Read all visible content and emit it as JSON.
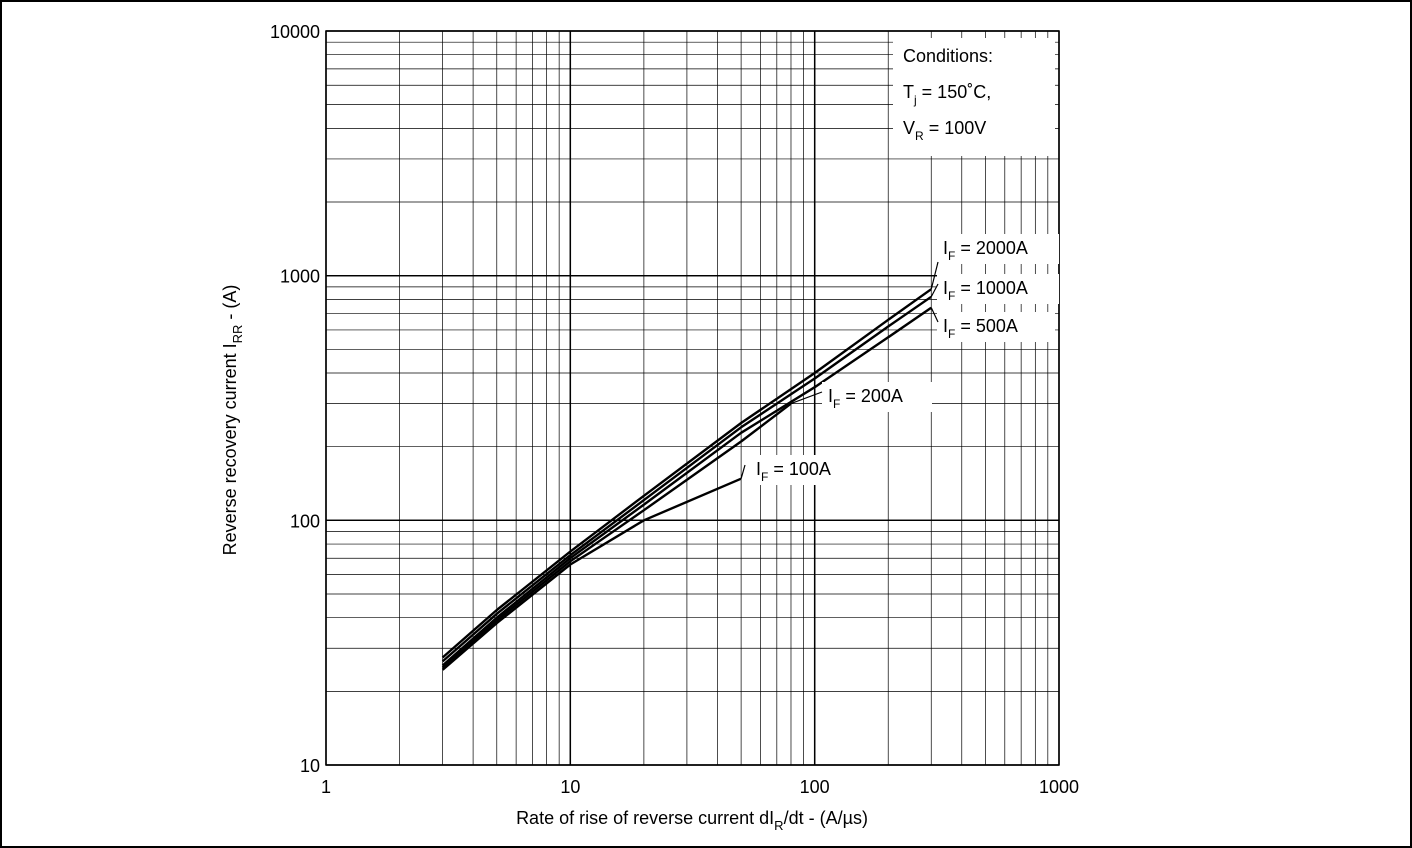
{
  "chart_data": {
    "type": "line",
    "x_scale": "log",
    "y_scale": "log",
    "xlim": [
      1,
      1000
    ],
    "ylim": [
      10,
      10000
    ],
    "grid": true,
    "x_ticks": [
      "1",
      "10",
      "100",
      "1000"
    ],
    "y_ticks": [
      "10",
      "100",
      "1000",
      "10000"
    ],
    "xlabel": {
      "main": "Rate of rise of reverse current dI",
      "sub": "R",
      "suffix": "/dt - (A/µs)"
    },
    "ylabel": {
      "main": "Reverse recovery current I",
      "sub": "RR",
      "suffix": " - (A)"
    },
    "conditions": {
      "title": "Conditions:",
      "line1": {
        "main": "T",
        "sub": "j",
        "suffix": " = 150˚C,"
      },
      "line2": {
        "main": "V",
        "sub": "R",
        "suffix": " = 100V"
      }
    },
    "series": [
      {
        "name": {
          "main": "I",
          "sub": "F",
          "suffix": " = 100A"
        },
        "x": [
          3,
          5,
          10,
          20,
          50
        ],
        "y": [
          24.5,
          38,
          66,
          100,
          148
        ]
      },
      {
        "name": {
          "main": "I",
          "sub": "F",
          "suffix": " = 200A"
        },
        "x": [
          3,
          5,
          10,
          20,
          50,
          80
        ],
        "y": [
          25,
          39,
          68,
          110,
          210,
          300
        ]
      },
      {
        "name": {
          "main": "I",
          "sub": "F",
          "suffix": " = 500A"
        },
        "x": [
          3,
          5,
          10,
          20,
          50,
          100,
          200,
          300
        ],
        "y": [
          25.5,
          40,
          70,
          116,
          228,
          350,
          560,
          740
        ]
      },
      {
        "name": {
          "main": "I",
          "sub": "F",
          "suffix": " = 1000A"
        },
        "x": [
          3,
          5,
          10,
          20,
          50,
          100,
          200,
          300
        ],
        "y": [
          26.5,
          41.5,
          72,
          121,
          240,
          380,
          620,
          820
        ]
      },
      {
        "name": {
          "main": "I",
          "sub": "F",
          "suffix": " = 2000A"
        },
        "x": [
          3,
          5,
          10,
          20,
          50,
          100,
          200,
          300
        ],
        "y": [
          27.5,
          43,
          74.5,
          126,
          250,
          400,
          660,
          880
        ]
      }
    ]
  }
}
